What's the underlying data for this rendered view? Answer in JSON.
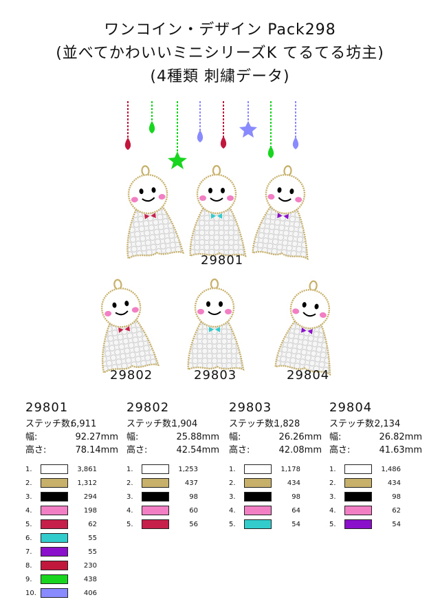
{
  "title": {
    "line1": "ワンコイン・デザイン Pack298",
    "line2": "(並べてかわいいミニシリーズK てるてる坊主)",
    "line3": "(4種類 刺繍データ)"
  },
  "labels": {
    "a": "29801",
    "b": "29802",
    "c": "29803",
    "d": "29804"
  },
  "colors": {
    "white": "#ffffff",
    "gold": "#c7b06a",
    "black": "#000000",
    "pink": "#f27fc4",
    "red": "#c61f4a",
    "teal": "#33cccc",
    "purple": "#8a10cc",
    "crimson": "#c2173c",
    "green": "#18d620",
    "lavender": "#8a8aff"
  },
  "designs": [
    {
      "code": "29801",
      "stitch_label": "ステッチ数:",
      "stitch": "6,911",
      "width_label": "幅:",
      "width": "92.27mm",
      "height_label": "高さ:",
      "height": "78.14mm",
      "threads": [
        {
          "n": "1.",
          "color": "#ffffff",
          "count": "3,861"
        },
        {
          "n": "2.",
          "color": "#c7b06a",
          "count": "1,312"
        },
        {
          "n": "3.",
          "color": "#000000",
          "count": "294"
        },
        {
          "n": "4.",
          "color": "#f27fc4",
          "count": "198"
        },
        {
          "n": "5.",
          "color": "#c61f4a",
          "count": "62"
        },
        {
          "n": "6.",
          "color": "#33cccc",
          "count": "55"
        },
        {
          "n": "7.",
          "color": "#8a10cc",
          "count": "55"
        },
        {
          "n": "8.",
          "color": "#c2173c",
          "count": "230"
        },
        {
          "n": "9.",
          "color": "#18d620",
          "count": "438"
        },
        {
          "n": "10.",
          "color": "#8a8aff",
          "count": "406"
        }
      ]
    },
    {
      "code": "29802",
      "stitch_label": "ステッチ数:",
      "stitch": "1,904",
      "width_label": "幅:",
      "width": "25.88mm",
      "height_label": "高さ:",
      "height": "42.54mm",
      "threads": [
        {
          "n": "1.",
          "color": "#ffffff",
          "count": "1,253"
        },
        {
          "n": "2.",
          "color": "#c7b06a",
          "count": "437"
        },
        {
          "n": "3.",
          "color": "#000000",
          "count": "98"
        },
        {
          "n": "4.",
          "color": "#f27fc4",
          "count": "60"
        },
        {
          "n": "5.",
          "color": "#c61f4a",
          "count": "56"
        }
      ]
    },
    {
      "code": "29803",
      "stitch_label": "ステッチ数:",
      "stitch": "1,828",
      "width_label": "幅:",
      "width": "26.26mm",
      "height_label": "高さ:",
      "height": "42.08mm",
      "threads": [
        {
          "n": "1.",
          "color": "#ffffff",
          "count": "1,178"
        },
        {
          "n": "2.",
          "color": "#c7b06a",
          "count": "434"
        },
        {
          "n": "3.",
          "color": "#000000",
          "count": "98"
        },
        {
          "n": "4.",
          "color": "#f27fc4",
          "count": "64"
        },
        {
          "n": "5.",
          "color": "#33cccc",
          "count": "54"
        }
      ]
    },
    {
      "code": "29804",
      "stitch_label": "ステッチ数:",
      "stitch": "2,134",
      "width_label": "幅:",
      "width": "26.82mm",
      "height_label": "高さ:",
      "height": "41.63mm",
      "threads": [
        {
          "n": "1.",
          "color": "#ffffff",
          "count": "1,486"
        },
        {
          "n": "2.",
          "color": "#c7b06a",
          "count": "434"
        },
        {
          "n": "3.",
          "color": "#000000",
          "count": "98"
        },
        {
          "n": "4.",
          "color": "#f27fc4",
          "count": "62"
        },
        {
          "n": "5.",
          "color": "#8a10cc",
          "count": "54"
        }
      ]
    }
  ]
}
